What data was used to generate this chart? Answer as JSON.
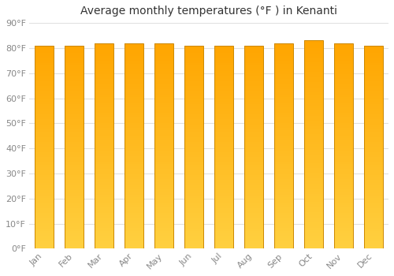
{
  "title": "Average monthly temperatures (°F ) in Kenanti",
  "months": [
    "Jan",
    "Feb",
    "Mar",
    "Apr",
    "May",
    "Jun",
    "Jul",
    "Aug",
    "Sep",
    "Oct",
    "Nov",
    "Dec"
  ],
  "values": [
    81,
    81,
    82,
    82,
    82,
    81,
    81,
    81,
    82,
    83,
    82,
    81
  ],
  "bar_color_top": "#FFA500",
  "bar_color_bottom": "#FFD040",
  "ylim": [
    0,
    90
  ],
  "yticks": [
    0,
    10,
    20,
    30,
    40,
    50,
    60,
    70,
    80,
    90
  ],
  "ytick_labels": [
    "0°F",
    "10°F",
    "20°F",
    "30°F",
    "40°F",
    "50°F",
    "60°F",
    "70°F",
    "80°F",
    "90°F"
  ],
  "background_color": "#ffffff",
  "plot_bg_color": "#ffffff",
  "grid_color": "#e0e0e0",
  "title_fontsize": 10,
  "tick_fontsize": 8,
  "bar_edge_color": "#CC8800",
  "bar_width": 0.65,
  "fig_width": 5.0,
  "fig_height": 3.5,
  "dpi": 100
}
